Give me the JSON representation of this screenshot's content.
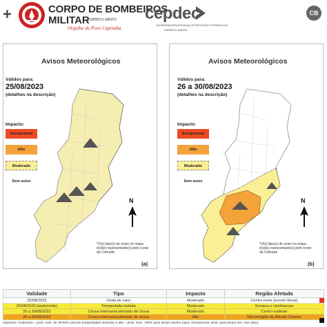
{
  "header": {
    "plus": "+",
    "cbm_line1": "CORPO DE BOMBEIROS",
    "cbm_line2": "MILITAR",
    "cbm_state": "ESPÍRITO SANTO",
    "cbm_motto": "Orgulho do Povo Capixaba",
    "cepdec_logo": "cepdec",
    "cepdec_sub1": "COORDENADORIA ESTADUAL DE PROTEÇÃO E DEFESA CIVIL",
    "cepdec_sub2": "ESPÍRITO SANTO",
    "cb_badge": "CB"
  },
  "panels": [
    {
      "title": "Avisos Meteorológicos",
      "valid_label": "Válidos para:",
      "date": "25/08/2023",
      "details": "(detalhes na descrição)",
      "legend_title": "Impacto:",
      "legend": [
        "Excepcional",
        "Alto",
        "Moderado",
        "Sem aviso"
      ],
      "note": "*O(s) tipo(s) de aviso no mapa é(são) representado(s) pelo ícone da Cobrade.",
      "label": "(a)",
      "north": "N"
    },
    {
      "title": "Avisos Meteorológicos",
      "valid_label": "Válidos para:",
      "date": "26 a 30/08/2023",
      "details": "(detalhes na descrição)",
      "legend_title": "Impacto:",
      "legend": [
        "Excepcional",
        "Alto",
        "Moderado",
        "Sem aviso"
      ],
      "note": "*O(s) tipo(s) de aviso no mapa é(são) representado(s) pelo ícone da Cobrade.",
      "label": "(b)",
      "north": "N"
    }
  ],
  "colors": {
    "excepcional": "#ee4a23",
    "alto": "#f4a23a",
    "moderado": "#fbef95",
    "moderado_map": "#f6eeb0",
    "sem_aviso": "#ffffff",
    "table_yellow": "#f7ea3a",
    "table_orange": "#f2a21f"
  },
  "table": {
    "headers": [
      "Validade",
      "Tipo",
      "Impacto",
      "Região Afetada"
    ],
    "rows": [
      {
        "style": "white",
        "cells": [
          "25/08/2023",
          "Onda de calor",
          "Moderado",
          "Centro-norte (exceto litoral)"
        ]
      },
      {
        "style": "yellow",
        "cells": [
          "25/08/2023 (tarde/noite)",
          "Tempestade isolada",
          "Moderado",
          "Serrana e vizinhanças"
        ]
      },
      {
        "style": "yellow",
        "cells": [
          "26 a 30/08/2023",
          "Chuva intensa/acumulado de chuva",
          "Moderado",
          "Centro-sudeste"
        ]
      },
      {
        "style": "orange",
        "cells": [
          "26 a 30/08/2023",
          "Chuva intensa/acumulado de chuva",
          "Alto",
          "Microrregião de Alfredo Chaves"
        ]
      }
    ],
    "footnote": "Impactos: moderado – prob. num. de 30-50% (exceto tempestades severas) e alto – prob. num. >50% para tempo severo (tipo). Excepcional: prob. para tempo sev. raro (tipo)."
  }
}
